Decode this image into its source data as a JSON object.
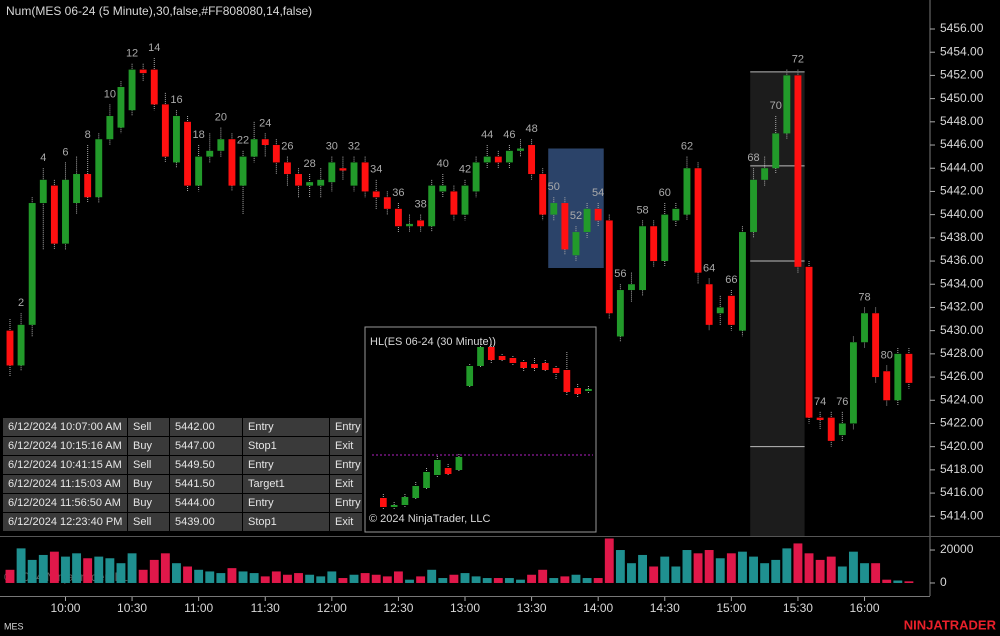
{
  "chart_data": [
    {
      "type": "candlestick",
      "title": "Num(MES 06-24 (5 Minute),30,false,#FF808080,14,false)",
      "symbol": "MES",
      "watermark": "© 2024 NinjaTrader, LLC",
      "x": [
        1,
        2,
        3,
        4,
        5,
        6,
        7,
        8,
        9,
        10,
        11,
        12,
        13,
        14,
        15,
        16,
        17,
        18,
        19,
        20,
        21,
        22,
        23,
        24,
        25,
        26,
        27,
        28,
        29,
        30,
        31,
        32,
        33,
        34,
        35,
        36,
        37,
        38,
        39,
        40,
        41,
        42,
        43,
        44,
        45,
        46,
        47,
        48,
        49,
        50,
        51,
        52,
        53,
        54,
        55,
        56,
        57,
        58,
        59,
        60,
        61,
        62,
        63,
        64,
        65,
        66,
        67,
        68,
        69,
        70,
        71,
        72,
        73,
        74,
        75,
        76,
        77,
        78,
        79,
        80,
        81,
        82
      ],
      "open": [
        5430,
        5427,
        5430.5,
        5441,
        5442.5,
        5437.5,
        5441,
        5443.5,
        5441.5,
        5446.5,
        5447.5,
        5449,
        5452.5,
        5452.5,
        5449.5,
        5444.5,
        5448,
        5442.5,
        5445,
        5445.5,
        5446.5,
        5442.5,
        5445,
        5446.5,
        5446,
        5444.5,
        5443.5,
        5442.5,
        5442.5,
        5442.8,
        5444,
        5442.5,
        5444.5,
        5442,
        5441.5,
        5440.5,
        5439,
        5439.5,
        5439,
        5442,
        5442,
        5440,
        5442,
        5444.5,
        5445,
        5444.5,
        5445.5,
        5446,
        5443.5,
        5440,
        5441,
        5436.5,
        5438.5,
        5440.5,
        5439.5,
        5429.5,
        5433.5,
        5433.5,
        5439,
        5436,
        5439.5,
        5440,
        5444,
        5434,
        5431.5,
        5433,
        5430,
        5438.5,
        5443,
        5444,
        5447,
        5452,
        5435.5,
        5422.5,
        5422.5,
        5421,
        5422,
        5429,
        5431.5,
        5426.5,
        5424,
        5428
      ],
      "high": [
        5431,
        5431.5,
        5441.5,
        5444,
        5443,
        5444.5,
        5445,
        5446,
        5447,
        5449.5,
        5451.5,
        5453,
        5453,
        5453.5,
        5450.5,
        5449,
        5448.5,
        5446,
        5447,
        5447.5,
        5447,
        5445.5,
        5448,
        5447,
        5446.5,
        5445,
        5444,
        5443.5,
        5444,
        5445,
        5445,
        5445,
        5445,
        5443,
        5442,
        5441,
        5440,
        5440,
        5443,
        5443.5,
        5442.5,
        5443,
        5445,
        5446,
        5445.5,
        5446,
        5446.5,
        5446.5,
        5444,
        5441.5,
        5441.5,
        5439,
        5441,
        5441,
        5440,
        5434,
        5435,
        5439.5,
        5439.5,
        5441,
        5441,
        5445,
        5444.5,
        5434.5,
        5433,
        5433.5,
        5439,
        5444,
        5445,
        5448.5,
        5452.5,
        5452.5,
        5436,
        5423,
        5423,
        5423,
        5429.5,
        5432,
        5432,
        5427,
        5428.5,
        5428.5
      ],
      "low": [
        5426,
        5426.5,
        5429.5,
        5437,
        5437,
        5437,
        5440,
        5441,
        5441,
        5446,
        5447,
        5448.5,
        5451.5,
        5449,
        5444.5,
        5444,
        5442,
        5442,
        5444.5,
        5445,
        5442,
        5440,
        5444.5,
        5445,
        5443.5,
        5442.5,
        5441.5,
        5441.5,
        5441.5,
        5442,
        5443,
        5442,
        5441.5,
        5440.5,
        5440,
        5438.5,
        5438.5,
        5438.5,
        5438.5,
        5441.5,
        5439.5,
        5439.5,
        5441.5,
        5444,
        5444,
        5444,
        5445,
        5443,
        5439.5,
        5439.5,
        5436.5,
        5436,
        5438,
        5439,
        5431,
        5429,
        5432.5,
        5433,
        5435.5,
        5435.5,
        5439,
        5439.5,
        5434,
        5430,
        5430.5,
        5430,
        5429.5,
        5438,
        5442.5,
        5443.5,
        5446.5,
        5435,
        5422,
        5421.5,
        5420,
        5420.5,
        5421.5,
        5428.5,
        5425.5,
        5423.5,
        5423.5,
        5425
      ],
      "close": [
        5427,
        5430.5,
        5441,
        5443,
        5437.5,
        5443,
        5443.5,
        5441.5,
        5446.5,
        5448.5,
        5451,
        5452.5,
        5452.2,
        5449.5,
        5445,
        5448.5,
        5442.5,
        5445,
        5445.5,
        5446.5,
        5442.5,
        5445,
        5446.5,
        5446,
        5444.5,
        5443.5,
        5442.5,
        5442.8,
        5443,
        5444.5,
        5443.8,
        5444.5,
        5442,
        5441.5,
        5440.5,
        5439,
        5439.2,
        5439,
        5442.5,
        5442.5,
        5440,
        5442.5,
        5444.5,
        5445,
        5444.5,
        5445.5,
        5445.7,
        5443.5,
        5440,
        5441,
        5437,
        5438.5,
        5440.5,
        5439.5,
        5431.5,
        5433.5,
        5434,
        5439,
        5436,
        5440,
        5440.5,
        5444,
        5435,
        5430.5,
        5432,
        5430.5,
        5438.5,
        5443,
        5444,
        5447,
        5452,
        5435.5,
        5422.5,
        5422.3,
        5420.5,
        5422,
        5429,
        5431.5,
        5426,
        5424,
        5428,
        5425.5
      ],
      "volume": [
        8000,
        21000,
        14000,
        17000,
        19000,
        16000,
        18000,
        15000,
        16000,
        15000,
        12000,
        18000,
        8000,
        14000,
        18000,
        12000,
        10000,
        8000,
        7000,
        6000,
        9000,
        7000,
        6000,
        4000,
        7000,
        5000,
        6000,
        5000,
        4000,
        7000,
        3000,
        5000,
        6000,
        5000,
        4000,
        7000,
        2000,
        4000,
        8000,
        3000,
        5000,
        6000,
        4000,
        3000,
        3000,
        3000,
        2000,
        5000,
        8000,
        3000,
        4000,
        5000,
        3000,
        3000,
        27000,
        20000,
        12000,
        17000,
        10000,
        16000,
        10000,
        20000,
        18000,
        20000,
        15000,
        18000,
        19000,
        16000,
        12000,
        14000,
        21000,
        24000,
        18000,
        14000,
        16000,
        10000,
        19000,
        12000,
        12000,
        2000,
        1500,
        1000
      ],
      "up_color": "#229a2a",
      "down_color": "#ff1010",
      "volume_up_color": "#1f9090",
      "volume_down_color": "#e0184a",
      "bar_labels": [
        2,
        4,
        6,
        8,
        10,
        12,
        14,
        16,
        18,
        20,
        22,
        24,
        26,
        28,
        30,
        32,
        34,
        36,
        38,
        40,
        42,
        44,
        46,
        48,
        50,
        52,
        54,
        56,
        58,
        60,
        62,
        64,
        66,
        68,
        70,
        72,
        74,
        76,
        78,
        80
      ],
      "xlim": [
        0.1,
        83.9
      ],
      "xticks": [
        {
          "value": 6,
          "label": "10:00"
        },
        {
          "value": 12,
          "label": "10:30"
        },
        {
          "value": 18,
          "label": "11:00"
        },
        {
          "value": 24,
          "label": "11:30"
        },
        {
          "value": 30,
          "label": "12:00"
        },
        {
          "value": 36,
          "label": "12:30"
        },
        {
          "value": 42,
          "label": "13:00"
        },
        {
          "value": 48,
          "label": "13:30"
        },
        {
          "value": 54,
          "label": "14:00"
        },
        {
          "value": 60,
          "label": "14:30"
        },
        {
          "value": 66,
          "label": "15:00"
        },
        {
          "value": 72,
          "label": "15:30"
        },
        {
          "value": 78,
          "label": "16:00"
        }
      ],
      "ylim": [
        5412.3,
        5458.5
      ],
      "yticks": [
        {
          "value": 5414,
          "label": "5414.00"
        },
        {
          "value": 5416,
          "label": "5416.00"
        },
        {
          "value": 5418,
          "label": "5418.00"
        },
        {
          "value": 5420,
          "label": "5420.00"
        },
        {
          "value": 5422,
          "label": "5422.00"
        },
        {
          "value": 5424,
          "label": "5424.00"
        },
        {
          "value": 5426,
          "label": "5426.00"
        },
        {
          "value": 5428,
          "label": "5428.00"
        },
        {
          "value": 5430,
          "label": "5430.00"
        },
        {
          "value": 5432,
          "label": "5432.00"
        },
        {
          "value": 5434,
          "label": "5434.00"
        },
        {
          "value": 5436,
          "label": "5436.00"
        },
        {
          "value": 5438,
          "label": "5438.00"
        },
        {
          "value": 5440,
          "label": "5440.00"
        },
        {
          "value": 5442,
          "label": "5442.00"
        },
        {
          "value": 5444,
          "label": "5444.00"
        },
        {
          "value": 5446,
          "label": "5446.00"
        },
        {
          "value": 5448,
          "label": "5448.00"
        },
        {
          "value": 5450,
          "label": "5450.00"
        },
        {
          "value": 5452,
          "label": "5452.00"
        },
        {
          "value": 5454,
          "label": "5454.00"
        },
        {
          "value": 5456,
          "label": "5456.00"
        }
      ],
      "volume_ylim": [
        -7900,
        27900
      ],
      "volume_yticks": [
        0,
        20000
      ],
      "highlight": {
        "x": [
          49.5,
          54.5
        ],
        "y": [
          5435.4,
          5445.7
        ],
        "color": "#3a5a8c"
      },
      "range_box": {
        "x": [
          67.7,
          72.6
        ],
        "levels": [
          5452.3,
          5444.2,
          5436,
          5420
        ],
        "color": "#1c1c1c"
      }
    },
    {
      "type": "candlestick",
      "title": "HL(ES 06-24 (30 Minute))",
      "copyright": "© 2024 NinjaTrader, LLC",
      "open": [
        5405.5,
        5403.25,
        5403.75,
        5405.5,
        5408,
        5411.25,
        5413,
        5412.5,
        5433.5,
        5438.5,
        5443.25,
        5441,
        5440.5,
        5439.5,
        5439,
        5439.25,
        5438,
        5437.5,
        5433,
        5432.25
      ],
      "high": [
        5406.5,
        5404.5,
        5406.5,
        5409.5,
        5413,
        5416,
        5414,
        5416.5,
        5439,
        5444,
        5444,
        5441.5,
        5441,
        5440,
        5440.5,
        5440,
        5438.5,
        5442,
        5434,
        5433.5
      ],
      "low": [
        5402.5,
        5402.5,
        5403,
        5405,
        5407.5,
        5410.5,
        5411,
        5412,
        5433,
        5438,
        5439,
        5439.5,
        5438.5,
        5437,
        5437,
        5437,
        5435,
        5431,
        5430.5,
        5431.5
      ],
      "close": [
        5403.25,
        5403.75,
        5405.75,
        5408.5,
        5412,
        5415,
        5411.5,
        5415.75,
        5438.5,
        5443.25,
        5440,
        5440,
        5439.25,
        5438,
        5438,
        5437.5,
        5436.75,
        5432,
        5431.5,
        5432.75
      ],
      "up_color": "#229a2a",
      "down_color": "#ff1010",
      "xlim": [
        -1.7,
        19.7
      ],
      "ylim": [
        5397.5,
        5446.75
      ],
      "level": 5416.25,
      "level_color": "#b020c0"
    }
  ],
  "trades": {
    "rows": [
      [
        "6/12/2024 10:07:00 AM",
        "Sell",
        "5442.00",
        "Entry",
        "Entry"
      ],
      [
        "6/12/2024 10:15:16 AM",
        "Buy",
        "5447.00",
        "Stop1",
        "Exit"
      ],
      [
        "6/12/2024 10:41:15 AM",
        "Sell",
        "5449.50",
        "Entry",
        "Entry"
      ],
      [
        "6/12/2024 11:15:03 AM",
        "Buy",
        "5441.50",
        "Target1",
        "Exit"
      ],
      [
        "6/12/2024 11:56:50 AM",
        "Buy",
        "5444.00",
        "Entry",
        "Entry"
      ],
      [
        "6/12/2024 12:23:40 PM",
        "Sell",
        "5439.00",
        "Stop1",
        "Exit"
      ]
    ]
  },
  "brand": "NINJATRADER"
}
